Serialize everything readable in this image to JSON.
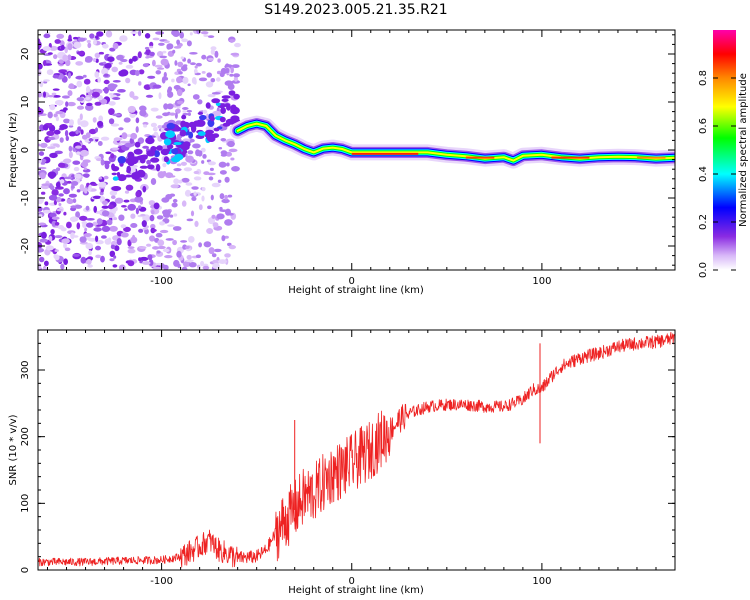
{
  "title": "S149.2023.005.21.35.R21",
  "chart_data": [
    {
      "type": "heatmap",
      "xlabel": "Height of straight line (km)",
      "ylabel": "Frequency (Hz)",
      "xlim": [
        -165,
        170
      ],
      "ylim": [
        -25,
        25
      ],
      "xticks": [
        -100,
        0,
        100
      ],
      "yticks": [
        -20,
        -10,
        0,
        10,
        20
      ],
      "colorbar": {
        "label": "Normalized spectral amplitude",
        "range": [
          0,
          1
        ],
        "ticks": [
          "0.0",
          "0.2",
          "0.4",
          "0.6",
          "0.8"
        ],
        "colors": [
          "#ffffff",
          "#d8b8f8",
          "#8a2be2",
          "#0000ff",
          "#00ffff",
          "#00ff00",
          "#ffff00",
          "#ff8800",
          "#ff0000",
          "#ff00aa"
        ]
      },
      "ridge": {
        "x": [
          -60,
          -55,
          -50,
          -45,
          -40,
          -35,
          -30,
          -25,
          -20,
          -15,
          -10,
          -5,
          0,
          10,
          20,
          30,
          40,
          50,
          60,
          70,
          80,
          85,
          90,
          100,
          110,
          120,
          130,
          140,
          150,
          160,
          170
        ],
        "y": [
          4,
          5,
          5.5,
          5,
          3,
          2,
          1.2,
          0.2,
          -0.5,
          0.3,
          0.5,
          0.2,
          -0.5,
          -0.5,
          -0.5,
          -0.5,
          -0.5,
          -1,
          -1.3,
          -1.8,
          -1.5,
          -2.2,
          -1.2,
          -1,
          -1.5,
          -1.8,
          -1.5,
          -1.4,
          -1.5,
          -1.8,
          -1.6
        ]
      },
      "scatter_region": {
        "x": [
          -165,
          -60
        ],
        "y": [
          -25,
          25
        ]
      }
    },
    {
      "type": "line",
      "xlabel": "Height of straight line (km)",
      "ylabel": "SNR (10 * v/v)",
      "xlim": [
        -165,
        170
      ],
      "ylim": [
        0,
        360
      ],
      "xticks": [
        -100,
        0,
        100
      ],
      "yticks": [
        0,
        100,
        200,
        300
      ],
      "color": "#ee2222",
      "series": [
        {
          "x": [
            -165,
            -140,
            -120,
            -100,
            -90,
            -80,
            -75,
            -70,
            -60,
            -50,
            -45,
            -40,
            -35,
            -30,
            -25,
            -20,
            -15,
            -10,
            -5,
            0,
            5,
            10,
            15,
            20,
            25,
            30,
            40,
            50,
            60,
            70,
            80,
            90,
            95,
            100,
            105,
            110,
            120,
            130,
            140,
            150,
            160,
            170
          ],
          "y": [
            12,
            12,
            14,
            15,
            20,
            35,
            45,
            30,
            18,
            20,
            30,
            55,
            75,
            90,
            110,
            115,
            130,
            145,
            150,
            160,
            170,
            180,
            195,
            210,
            225,
            235,
            245,
            248,
            248,
            245,
            245,
            255,
            270,
            272,
            290,
            305,
            318,
            325,
            335,
            340,
            342,
            348
          ]
        }
      ],
      "annotations": [
        {
          "x": -30,
          "y": 225,
          "type": "spike"
        },
        {
          "x": 99,
          "y": 340,
          "type": "spike"
        },
        {
          "x": 99,
          "y": 190,
          "type": "dip"
        }
      ]
    }
  ]
}
